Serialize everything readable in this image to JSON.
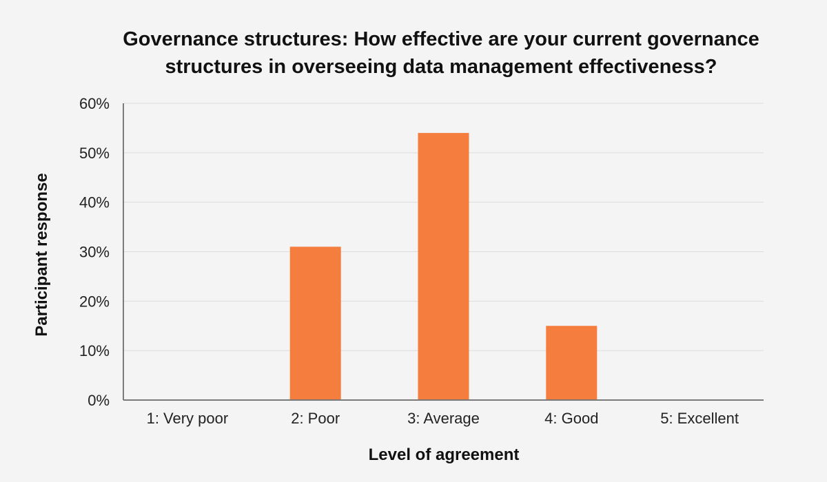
{
  "chart_data": {
    "type": "bar",
    "title_lines": [
      "Governance structures: How effective are your current governance",
      "structures in overseeing data management effectiveness?"
    ],
    "xlabel": "Level of agreement",
    "ylabel": "Participant response",
    "categories": [
      "1: Very poor",
      "2: Poor",
      "3: Average",
      "4: Good",
      "5: Excellent"
    ],
    "values": [
      0,
      31,
      54,
      15,
      0
    ],
    "ylim": [
      0,
      60
    ],
    "yticks": [
      0,
      10,
      20,
      30,
      40,
      50,
      60
    ],
    "ytick_labels": [
      "0%",
      "10%",
      "20%",
      "30%",
      "40%",
      "50%",
      "60%"
    ],
    "y_unit": "percent",
    "grid": true,
    "legend": "none",
    "bar_color": "#f57e3f"
  }
}
